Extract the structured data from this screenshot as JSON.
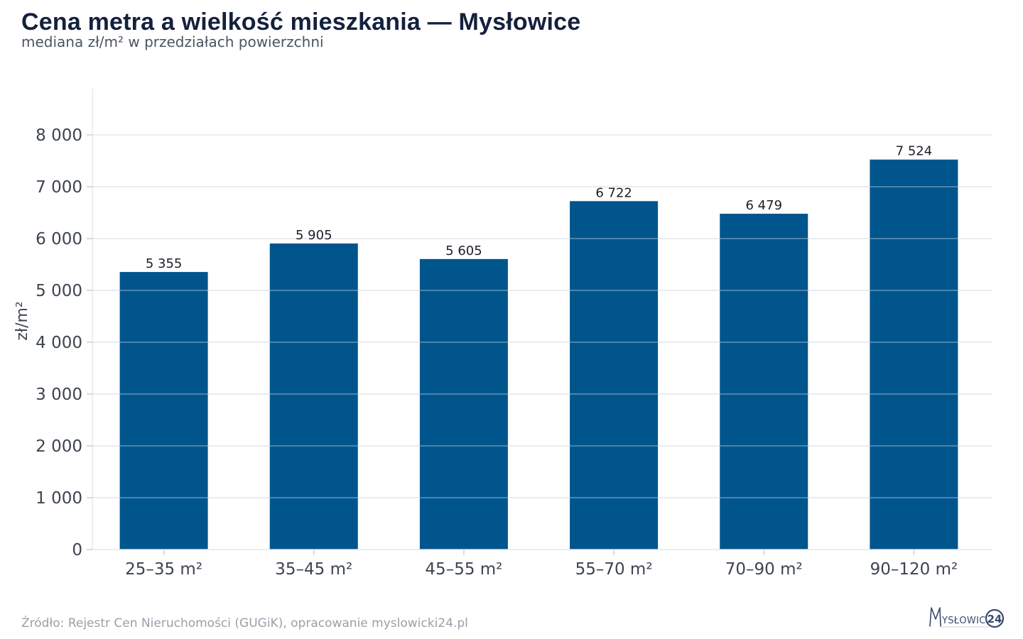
{
  "header": {
    "title": "Cena metra a wielkość mieszkania — Mysłowice",
    "subtitle": "mediana zł/m² w przedziałach powierzchni"
  },
  "footer": {
    "source": "Źródło: Rejestr Cen Nieruchomości (GUGiK), opracowanie myslowicki24.pl"
  },
  "logo": {
    "text": "MYSŁOWICKI",
    "badge": "24"
  },
  "colors": {
    "bar": "#00558d",
    "grid": "#e3e5e8",
    "axis": "#c9ccd1"
  },
  "chart_data": {
    "type": "bar",
    "title": "Cena metra a wielkość mieszkania — Mysłowice",
    "subtitle": "mediana zł/m² w przedziałach powierzchni",
    "xlabel": "",
    "ylabel": "zł/m²",
    "categories": [
      "25–35 m²",
      "35–45 m²",
      "45–55 m²",
      "55–70 m²",
      "70–90 m²",
      "90–120 m²"
    ],
    "values": [
      5355,
      5905,
      5605,
      6722,
      6479,
      7524
    ],
    "value_labels": [
      "5 355",
      "5 905",
      "5 605",
      "6 722",
      "6 479",
      "7 524"
    ],
    "ylim": [
      0,
      8000
    ],
    "yticks": [
      0,
      1000,
      2000,
      3000,
      4000,
      5000,
      6000,
      7000,
      8000
    ],
    "ytick_labels": [
      "0",
      "1 000",
      "2 000",
      "3 000",
      "4 000",
      "5 000",
      "6 000",
      "7 000",
      "8 000"
    ],
    "grid": true,
    "legend": "none"
  }
}
